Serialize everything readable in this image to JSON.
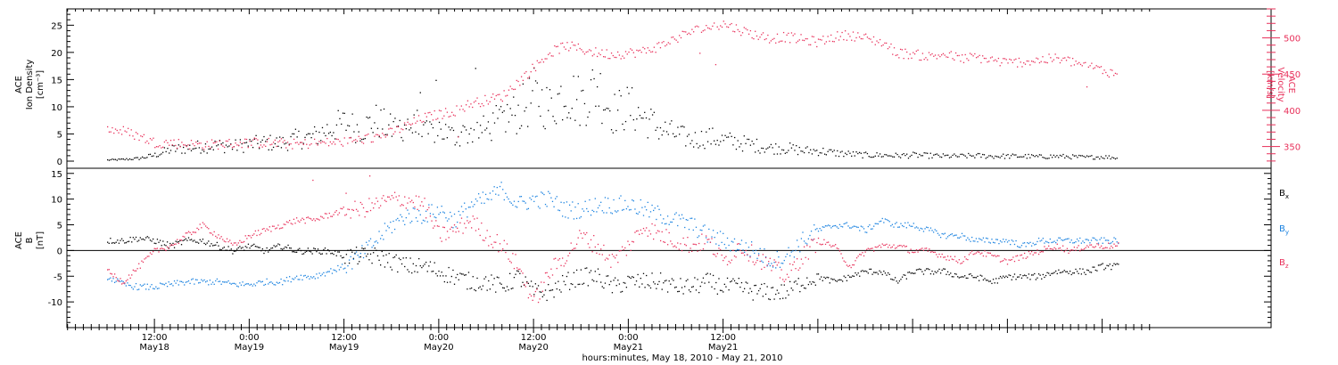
{
  "colors": {
    "black": "#000000",
    "magenta": "#e8305a",
    "blue": "#1a82e0"
  },
  "chart_data": [
    {
      "type": "scatter",
      "panel": "top",
      "title": "",
      "ylabel_left": [
        "ACE",
        "Ion Density",
        "[cm⁻³]"
      ],
      "ylabel_right": [
        "ACE",
        "Velocity",
        "[km/s]"
      ],
      "ylim_left": [
        0,
        28
      ],
      "ylim_right": [
        320,
        540
      ],
      "yticks_left": [
        "0",
        "5",
        "10",
        "15",
        "20",
        "25"
      ],
      "yticks_right": [
        "350",
        "400",
        "450",
        "500"
      ],
      "grid": false,
      "series": [
        {
          "name": "",
          "axis": "left",
          "color": "#000000",
          "x_hours": [
            0,
            2,
            4,
            6,
            8,
            10,
            12,
            14,
            16,
            18,
            20,
            22,
            24,
            26,
            28,
            30,
            32,
            34,
            36,
            38,
            40,
            42,
            44,
            46,
            48,
            50,
            52,
            54,
            56,
            58,
            60,
            62,
            64,
            66,
            68,
            70,
            72,
            74,
            76,
            78,
            80,
            82,
            84,
            86,
            88,
            90,
            92,
            94,
            96,
            98,
            100,
            102,
            104,
            106,
            108,
            110,
            112,
            114,
            116,
            118,
            120,
            122,
            124,
            126,
            128
          ],
          "values": [
            0.3,
            0.4,
            0.6,
            1.2,
            2.2,
            2.5,
            2.8,
            3.0,
            2.8,
            3.2,
            3.5,
            3.4,
            4.2,
            4.5,
            6,
            7,
            6,
            7.5,
            6,
            7,
            5,
            6,
            4.5,
            5.5,
            6,
            8,
            9,
            12,
            10,
            13,
            11,
            14,
            9,
            10,
            8,
            6,
            5,
            4,
            4.5,
            4,
            3.5,
            3,
            2.5,
            2.5,
            2,
            2,
            1.6,
            1.4,
            1.2,
            1.2,
            1.1,
            1.2,
            1.1,
            1.0,
            1.0,
            1.1,
            1.0,
            1.0,
            1.0,
            0.9,
            1.0,
            0.9,
            0.8,
            0.9,
            0.7
          ]
        },
        {
          "name": "",
          "axis": "right",
          "color": "#e8305a",
          "x_hours": [
            0,
            2,
            4,
            6,
            8,
            10,
            12,
            14,
            16,
            18,
            20,
            22,
            24,
            26,
            28,
            30,
            32,
            34,
            36,
            38,
            40,
            42,
            44,
            46,
            48,
            50,
            52,
            54,
            56,
            58,
            60,
            62,
            64,
            66,
            68,
            70,
            72,
            74,
            76,
            78,
            80,
            82,
            84,
            86,
            88,
            90,
            92,
            94,
            96,
            98,
            100,
            102,
            104,
            106,
            108,
            110,
            112,
            114,
            116,
            118,
            120,
            122,
            124,
            126,
            128
          ],
          "values": [
            375,
            372,
            365,
            356,
            356,
            354,
            353,
            354,
            355,
            356,
            356,
            355,
            354,
            355,
            356,
            357,
            360,
            364,
            370,
            380,
            390,
            395,
            400,
            410,
            415,
            420,
            440,
            460,
            480,
            490,
            485,
            480,
            478,
            480,
            482,
            490,
            500,
            510,
            515,
            520,
            512,
            505,
            500,
            502,
            498,
            495,
            502,
            505,
            500,
            495,
            480,
            478,
            475,
            478,
            472,
            474,
            470,
            466,
            468,
            470,
            472,
            468,
            462,
            456,
            450
          ]
        }
      ]
    },
    {
      "type": "scatter",
      "panel": "bottom",
      "title": "",
      "ylabel_left": [
        "ACE",
        "B",
        "[nT]"
      ],
      "ylim": [
        -15,
        16
      ],
      "yticks": [
        "-10",
        "-5",
        "0",
        "5",
        "10",
        "15"
      ],
      "zero_line": true,
      "grid": false,
      "xlabel": "hours:minutes, May 18, 2010 - May 21, 2010",
      "x_tick_labels": [
        {
          "time": "12:00",
          "date": "May18"
        },
        {
          "time": "0:00",
          "date": "May19"
        },
        {
          "time": "12:00",
          "date": "May19"
        },
        {
          "time": "0:00",
          "date": "May20"
        },
        {
          "time": "12:00",
          "date": "May20"
        },
        {
          "time": "0:00",
          "date": "May21"
        },
        {
          "time": "12:00",
          "date": "May21"
        }
      ],
      "legend": [
        "B",
        "B",
        "B"
      ],
      "legend_subscripts": [
        "x",
        "y",
        "z"
      ],
      "legend_placement": "right",
      "series": [
        {
          "name": "Bx",
          "color": "#000000",
          "x_hours": [
            0,
            2,
            4,
            6,
            8,
            10,
            12,
            14,
            16,
            18,
            20,
            22,
            24,
            26,
            28,
            30,
            32,
            34,
            36,
            38,
            40,
            42,
            44,
            46,
            48,
            50,
            52,
            54,
            56,
            58,
            60,
            62,
            64,
            66,
            68,
            70,
            72,
            74,
            76,
            78,
            80,
            82,
            84,
            86,
            88,
            90,
            92,
            94,
            96,
            98,
            100,
            102,
            104,
            106,
            108,
            110,
            112,
            114,
            116,
            118,
            120,
            122,
            124,
            126,
            128
          ],
          "values": [
            2,
            2,
            2.5,
            2,
            1,
            2,
            2,
            1,
            0,
            1,
            0,
            1,
            0,
            0,
            0,
            -1,
            -1,
            -1,
            -2,
            -3,
            -3,
            -4,
            -5,
            -6,
            -6,
            -7,
            -5,
            -8,
            -8,
            -6,
            -5,
            -5,
            -7,
            -6,
            -6,
            -6,
            -7,
            -7,
            -6,
            -7,
            -7,
            -8,
            -8,
            -8,
            -6,
            -5,
            -6,
            -5,
            -4,
            -4,
            -6,
            -4,
            -4,
            -4,
            -5,
            -5,
            -6,
            -5,
            -5,
            -5,
            -4,
            -4,
            -4,
            -3,
            -3
          ]
        },
        {
          "name": "By",
          "color": "#1a82e0",
          "x_hours": [
            0,
            2,
            4,
            6,
            8,
            10,
            12,
            14,
            16,
            18,
            20,
            22,
            24,
            26,
            28,
            30,
            32,
            34,
            36,
            38,
            40,
            42,
            44,
            46,
            48,
            50,
            52,
            54,
            56,
            58,
            60,
            62,
            64,
            66,
            68,
            70,
            72,
            74,
            76,
            78,
            80,
            82,
            84,
            86,
            88,
            90,
            92,
            94,
            96,
            98,
            100,
            102,
            104,
            106,
            108,
            110,
            112,
            114,
            116,
            118,
            120,
            122,
            124,
            126,
            128
          ],
          "values": [
            -5,
            -6.5,
            -7,
            -7,
            -6.5,
            -6,
            -6,
            -6,
            -6.5,
            -6.5,
            -6,
            -6,
            -5,
            -5,
            -4,
            -3,
            -1,
            2,
            5,
            7,
            7,
            8,
            6,
            9,
            10,
            12,
            9,
            10,
            10,
            8,
            8,
            9,
            9,
            9,
            8,
            7,
            6,
            5,
            3,
            2,
            1,
            0,
            -2,
            -1,
            2,
            4,
            5,
            5,
            4,
            6,
            5,
            5,
            4,
            3,
            3,
            2,
            2,
            2,
            1,
            2,
            2,
            2,
            2,
            2,
            2
          ]
        },
        {
          "name": "Bz",
          "color": "#e8305a",
          "x_hours": [
            0,
            2,
            4,
            6,
            8,
            10,
            12,
            14,
            16,
            18,
            20,
            22,
            24,
            26,
            28,
            30,
            32,
            34,
            36,
            38,
            40,
            42,
            44,
            46,
            48,
            50,
            52,
            54,
            56,
            58,
            60,
            62,
            64,
            66,
            68,
            70,
            72,
            74,
            76,
            78,
            80,
            82,
            84,
            86,
            88,
            90,
            92,
            94,
            96,
            98,
            100,
            102,
            104,
            106,
            108,
            110,
            112,
            114,
            116,
            118,
            120,
            122,
            124,
            126,
            128
          ],
          "values": [
            -4,
            -6,
            -3,
            0,
            1,
            3,
            5,
            3,
            1,
            3,
            4,
            5,
            6,
            6,
            7,
            8,
            8,
            9,
            10,
            10,
            9,
            3,
            4,
            6,
            3,
            1,
            -3,
            -10,
            -4,
            -1,
            3,
            1,
            -2,
            1,
            5,
            3,
            2,
            1,
            2,
            -2,
            1,
            -1,
            -3,
            -5,
            -1,
            2,
            1,
            -3,
            0,
            1,
            1,
            0,
            0,
            -1,
            -2,
            0,
            -1,
            -2,
            -1,
            0,
            1,
            0,
            1,
            1,
            1
          ]
        }
      ]
    }
  ]
}
